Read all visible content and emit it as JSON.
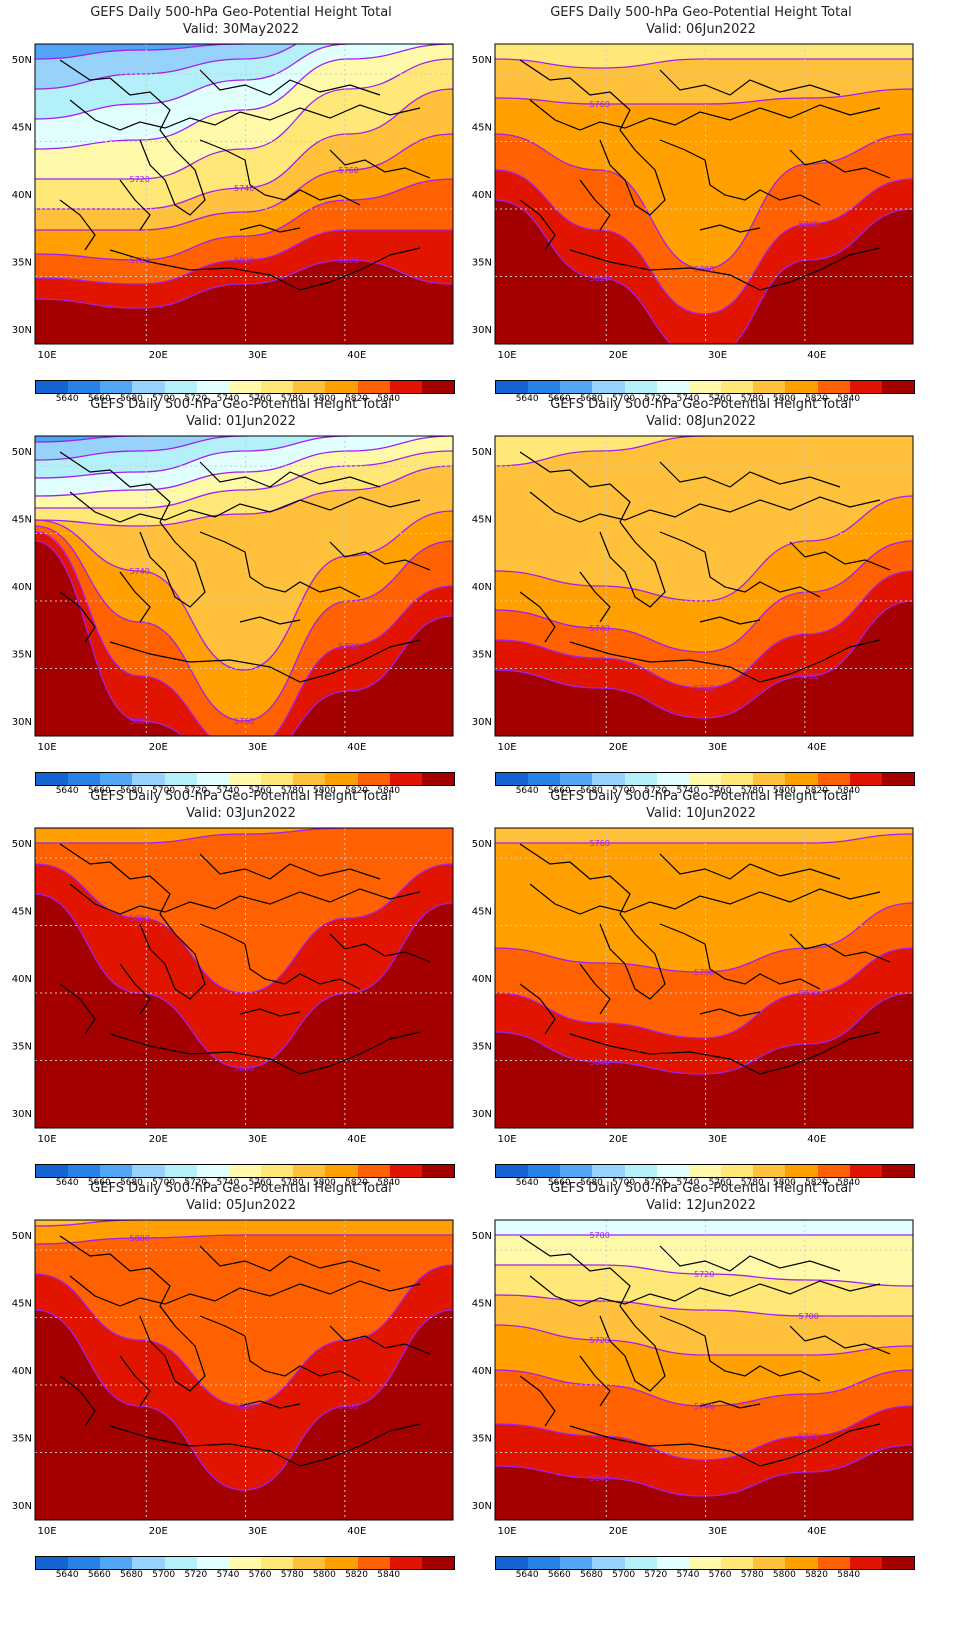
{
  "title": "GEFS Daily 500-hPa Geo-Potential Height Total",
  "lat_ticks": [
    "50N",
    "45N",
    "40N",
    "35N",
    "30N"
  ],
  "lon_ticks": [
    "10E",
    "20E",
    "30E",
    "40E"
  ],
  "colorbar": {
    "labels": [
      "5640",
      "5660",
      "5680",
      "5700",
      "5720",
      "5740",
      "5760",
      "5780",
      "5800",
      "5820",
      "5840"
    ],
    "colors": [
      "#1464d2",
      "#2882e6",
      "#50a5f5",
      "#96d2fa",
      "#b4f0fa",
      "#e1ffff",
      "#fffaaa",
      "#ffe878",
      "#ffc03c",
      "#ffa000",
      "#ff6000",
      "#e11400",
      "#a50000"
    ]
  },
  "panels": [
    {
      "valid": "Valid: 30May2022",
      "col": 0,
      "row": 0,
      "contour_labels": [
        "5720",
        "5740",
        "5760",
        "5780",
        "5800",
        "5820"
      ]
    },
    {
      "valid": "Valid: 06Jun2022",
      "col": 1,
      "row": 0,
      "contour_labels": [
        "5760",
        "5780",
        "5800",
        "5820"
      ]
    },
    {
      "valid": "Valid: 01Jun2022",
      "col": 0,
      "row": 1,
      "contour_labels": [
        "5740",
        "5760",
        "5780",
        "5800"
      ]
    },
    {
      "valid": "Valid: 08Jun2022",
      "col": 1,
      "row": 1,
      "contour_labels": [
        "5740",
        "5760",
        "5780"
      ]
    },
    {
      "valid": "Valid: 03Jun2022",
      "col": 0,
      "row": 2,
      "contour_labels": [
        "5800",
        "5800"
      ]
    },
    {
      "valid": "Valid: 10Jun2022",
      "col": 1,
      "row": 2,
      "contour_labels": [
        "5760",
        "5780",
        "5820",
        "5840"
      ]
    },
    {
      "valid": "Valid: 05Jun2022",
      "col": 0,
      "row": 3,
      "contour_labels": [
        "5800",
        "5820",
        "5780"
      ]
    },
    {
      "valid": "Valid: 12Jun2022",
      "col": 1,
      "row": 3,
      "contour_labels": [
        "5700",
        "5720",
        "5700",
        "5720",
        "5740",
        "5820",
        "5840"
      ]
    }
  ]
}
